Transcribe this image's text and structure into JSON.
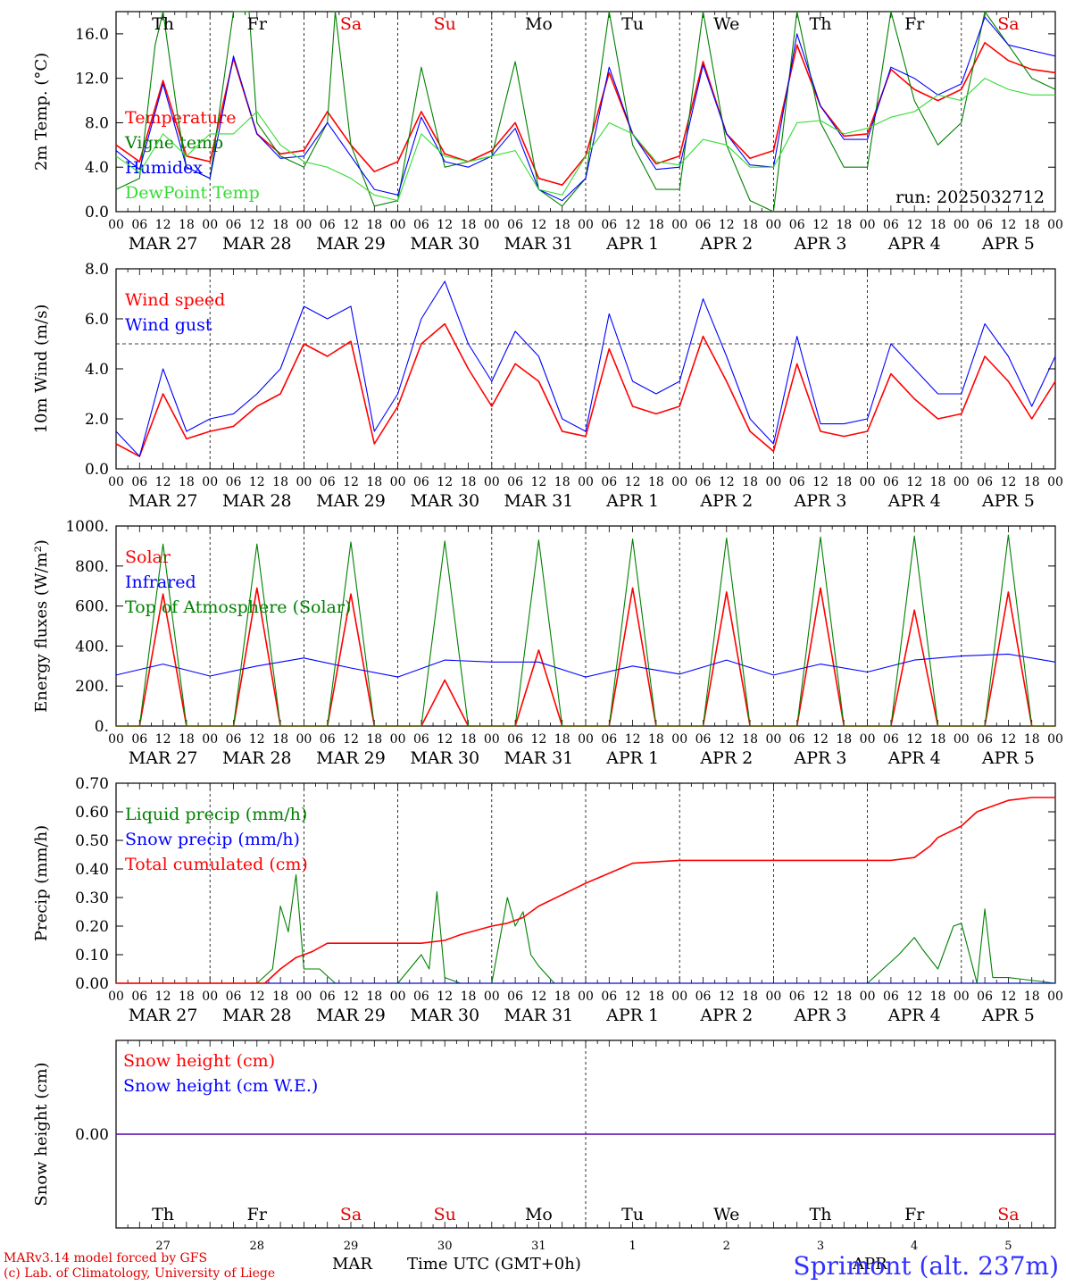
{
  "colors": {
    "red": "#ff0000",
    "green": "#008000",
    "blue": "#0000ff",
    "lightgreen": "#33dd33",
    "weekday": "#000000",
    "weekend": "#e00000",
    "station": "#3030ff",
    "credit": "#e00000"
  },
  "days": [
    {
      "weekday": "Th",
      "date": "MAR 27",
      "num": "27",
      "weekend": false
    },
    {
      "weekday": "Fr",
      "date": "MAR 28",
      "num": "28",
      "weekend": false
    },
    {
      "weekday": "Sa",
      "date": "MAR 29",
      "num": "29",
      "weekend": true
    },
    {
      "weekday": "Su",
      "date": "MAR 30",
      "num": "30",
      "weekend": true
    },
    {
      "weekday": "Mo",
      "date": "MAR 31",
      "num": "31",
      "weekend": false
    },
    {
      "weekday": "Tu",
      "date": "APR 1",
      "num": "1",
      "weekend": false
    },
    {
      "weekday": "We",
      "date": "APR 2",
      "num": "2",
      "weekend": false
    },
    {
      "weekday": "Th",
      "date": "APR 3",
      "num": "3",
      "weekend": false
    },
    {
      "weekday": "Fr",
      "date": "APR 4",
      "num": "4",
      "weekend": false
    },
    {
      "weekday": "Sa",
      "date": "APR 5",
      "num": "5",
      "weekend": true
    }
  ],
  "hour_ticks": [
    "00",
    "06",
    "12",
    "18"
  ],
  "chart_data": [
    {
      "type": "line",
      "ylabel": "2m Temp. (°C)",
      "ylim": [
        0,
        18
      ],
      "yticks": [
        "0.0",
        "4.0",
        "8.0",
        "12.0",
        "16.0"
      ],
      "x_unit": "hours since MAR 27 00 UTC",
      "run_label": "run: 2025032712",
      "series": [
        {
          "name": "Temperature",
          "color": "red",
          "x": [
            0,
            6,
            12,
            18,
            24,
            30,
            36,
            42,
            48,
            54,
            60,
            66,
            72,
            78,
            84,
            90,
            96,
            102,
            108,
            114,
            120,
            126,
            132,
            138,
            144,
            150,
            156,
            162,
            168,
            174,
            180,
            186,
            192,
            198,
            204,
            210,
            216,
            222,
            228,
            234,
            240
          ],
          "values": [
            6,
            4.5,
            11.8,
            5,
            4.5,
            13.8,
            7,
            5.2,
            5.5,
            9,
            6,
            3.6,
            4.5,
            9,
            5.2,
            4.5,
            5.5,
            8,
            3,
            2.4,
            5,
            12.5,
            7,
            4.3,
            5,
            13.5,
            7,
            4.8,
            5.5,
            15,
            9.5,
            6.8,
            7,
            12.8,
            11,
            10,
            11,
            15.2,
            13.6,
            12.8,
            12.5
          ]
        },
        {
          "name": "Vigne temp",
          "color": "green",
          "x": [
            0,
            6,
            10,
            12,
            16,
            18,
            24,
            30,
            34,
            36,
            42,
            48,
            54,
            56,
            60,
            66,
            72,
            78,
            84,
            90,
            96,
            102,
            108,
            114,
            120,
            126,
            132,
            138,
            144,
            150,
            156,
            162,
            168,
            174,
            180,
            186,
            192,
            198,
            204,
            210,
            216,
            222,
            228,
            234,
            240
          ],
          "values": [
            2,
            3,
            15,
            18,
            8,
            4,
            3,
            18,
            18,
            8,
            5,
            4,
            8,
            18,
            6,
            0.5,
            1,
            13,
            4,
            4.5,
            5,
            13.5,
            2,
            0.5,
            3,
            18,
            6,
            2,
            2,
            18,
            6,
            1,
            0,
            18,
            8,
            4,
            4,
            18,
            10,
            6,
            8,
            18,
            15,
            12,
            11
          ]
        },
        {
          "name": "Humidex",
          "color": "blue",
          "x": [
            0,
            6,
            12,
            18,
            24,
            30,
            36,
            42,
            48,
            54,
            60,
            66,
            72,
            78,
            84,
            90,
            96,
            102,
            108,
            114,
            120,
            126,
            132,
            138,
            144,
            150,
            156,
            162,
            168,
            174,
            180,
            186,
            192,
            198,
            204,
            210,
            216,
            222,
            228,
            234,
            240
          ],
          "values": [
            5.5,
            3.8,
            11.5,
            4,
            3,
            14,
            7,
            4.8,
            5,
            8,
            5,
            2,
            1.5,
            8.5,
            4.5,
            4,
            5,
            7.5,
            2,
            1,
            3,
            13,
            7,
            3.8,
            4,
            13.2,
            7,
            4.2,
            4,
            16,
            9.5,
            6.5,
            6.5,
            13,
            12,
            10.5,
            11.5,
            17.5,
            15,
            14.5,
            14
          ]
        },
        {
          "name": "DewPoint Temp",
          "color": "lightgreen",
          "x": [
            0,
            6,
            12,
            18,
            24,
            30,
            36,
            42,
            48,
            54,
            60,
            66,
            72,
            78,
            84,
            90,
            96,
            102,
            108,
            114,
            120,
            126,
            132,
            138,
            144,
            150,
            156,
            162,
            168,
            174,
            180,
            186,
            192,
            198,
            204,
            210,
            216,
            222,
            228,
            234,
            240
          ],
          "values": [
            5,
            3.5,
            7,
            5,
            7,
            7,
            9,
            6,
            4.5,
            4,
            3,
            1.5,
            1,
            7,
            5,
            4.5,
            5,
            5.5,
            2,
            1.5,
            5,
            8,
            7,
            4.5,
            4.2,
            6.5,
            6,
            4,
            4,
            8,
            8.2,
            7,
            7.5,
            8.5,
            9,
            10.5,
            10,
            12,
            11,
            10.5,
            10.5
          ]
        }
      ]
    },
    {
      "type": "line",
      "ylabel": "10m Wind (m/s)",
      "ylim": [
        0,
        8
      ],
      "yticks": [
        "0.0",
        "2.0",
        "4.0",
        "6.0",
        "8.0"
      ],
      "reference_line": 5,
      "series": [
        {
          "name": "Wind speed",
          "color": "red",
          "x": [
            0,
            6,
            12,
            18,
            24,
            30,
            36,
            42,
            48,
            54,
            60,
            66,
            72,
            78,
            84,
            90,
            96,
            102,
            108,
            114,
            120,
            126,
            132,
            138,
            144,
            150,
            156,
            162,
            168,
            174,
            180,
            186,
            192,
            198,
            204,
            210,
            216,
            222,
            228,
            234,
            240
          ],
          "values": [
            1,
            0.5,
            3,
            1.2,
            1.5,
            1.7,
            2.5,
            3,
            5,
            4.5,
            5.1,
            1,
            2.5,
            5,
            5.8,
            4,
            2.5,
            4.2,
            3.5,
            1.5,
            1.3,
            4.8,
            2.5,
            2.2,
            2.5,
            5.3,
            3.5,
            1.5,
            0.7,
            4.2,
            1.5,
            1.3,
            1.5,
            3.8,
            2.8,
            2,
            2.2,
            4.5,
            3.5,
            2,
            3.5
          ]
        },
        {
          "name": "Wind gust",
          "color": "blue",
          "x": [
            0,
            6,
            12,
            18,
            24,
            30,
            36,
            42,
            48,
            54,
            60,
            66,
            72,
            78,
            84,
            90,
            96,
            102,
            108,
            114,
            120,
            126,
            132,
            138,
            144,
            150,
            156,
            162,
            168,
            174,
            180,
            186,
            192,
            198,
            204,
            210,
            216,
            222,
            228,
            234,
            240
          ],
          "values": [
            1.5,
            0.5,
            4,
            1.5,
            2,
            2.2,
            3,
            4,
            6.5,
            6,
            6.5,
            1.5,
            3,
            6,
            7.5,
            5,
            3.5,
            5.5,
            4.5,
            2,
            1.5,
            6.2,
            3.5,
            3,
            3.5,
            6.8,
            4.5,
            2,
            1,
            5.3,
            1.8,
            1.8,
            2,
            5,
            4,
            3,
            3,
            5.8,
            4.5,
            2.5,
            4.5
          ]
        }
      ]
    },
    {
      "type": "line",
      "ylabel": "Energy fluxes (W/m²)",
      "ylim": [
        0,
        1000
      ],
      "yticks": [
        "0.",
        "200.",
        "400.",
        "600.",
        "800.",
        "1000."
      ],
      "series": [
        {
          "name": "Solar",
          "color": "red",
          "x": [
            0,
            6,
            12,
            18,
            24,
            30,
            36,
            42,
            48,
            54,
            60,
            66,
            72,
            78,
            84,
            90,
            96,
            102,
            108,
            114,
            120,
            126,
            132,
            138,
            144,
            150,
            156,
            162,
            168,
            174,
            180,
            186,
            192,
            198,
            204,
            210,
            216,
            222,
            228,
            234,
            240
          ],
          "values": [
            0,
            0,
            660,
            0,
            0,
            0,
            690,
            0,
            0,
            0,
            660,
            0,
            0,
            0,
            230,
            0,
            0,
            0,
            380,
            0,
            0,
            0,
            690,
            0,
            0,
            0,
            670,
            0,
            0,
            0,
            690,
            0,
            0,
            0,
            580,
            0,
            0,
            0,
            670,
            0,
            0
          ]
        },
        {
          "name": "Infrared",
          "color": "blue",
          "x": [
            0,
            12,
            24,
            36,
            48,
            60,
            72,
            84,
            96,
            108,
            120,
            132,
            144,
            156,
            168,
            180,
            192,
            204,
            216,
            228,
            240
          ],
          "values": [
            255,
            310,
            250,
            300,
            340,
            290,
            245,
            330,
            320,
            320,
            245,
            300,
            260,
            330,
            255,
            310,
            270,
            330,
            350,
            360,
            320
          ]
        },
        {
          "name": "Top of Atmosphere (Solar)",
          "color": "green",
          "x": [
            0,
            6,
            12,
            18,
            24,
            30,
            36,
            42,
            48,
            54,
            60,
            66,
            72,
            78,
            84,
            90,
            96,
            102,
            108,
            114,
            120,
            126,
            132,
            138,
            144,
            150,
            156,
            162,
            168,
            174,
            180,
            186,
            192,
            198,
            204,
            210,
            216,
            222,
            228,
            234,
            240
          ],
          "values": [
            0,
            0,
            910,
            0,
            0,
            0,
            910,
            0,
            0,
            0,
            920,
            0,
            0,
            0,
            925,
            0,
            0,
            0,
            930,
            0,
            0,
            0,
            935,
            0,
            0,
            0,
            940,
            0,
            0,
            0,
            945,
            0,
            0,
            0,
            950,
            0,
            0,
            0,
            955,
            0,
            0
          ]
        }
      ]
    },
    {
      "type": "line",
      "ylabel": "Precip (mm/h)",
      "ylim": [
        0,
        0.7
      ],
      "yticks": [
        "0.00",
        "0.10",
        "0.20",
        "0.30",
        "0.40",
        "0.50",
        "0.60",
        "0.70"
      ],
      "series": [
        {
          "name": "Liquid precip (mm/h)",
          "color": "green",
          "x": [
            0,
            36,
            40,
            42,
            44,
            46,
            48,
            52,
            56,
            72,
            78,
            80,
            82,
            84,
            88,
            96,
            98,
            100,
            102,
            104,
            106,
            108,
            110,
            112,
            114,
            120,
            192,
            200,
            204,
            206,
            210,
            214,
            216,
            220,
            222,
            224,
            228,
            240
          ],
          "values": [
            0,
            0,
            0.05,
            0.27,
            0.18,
            0.38,
            0.05,
            0.05,
            0,
            0,
            0.1,
            0.05,
            0.32,
            0.02,
            0,
            0,
            0.15,
            0.3,
            0.2,
            0.25,
            0.1,
            0.06,
            0.03,
            0,
            0,
            0,
            0,
            0.1,
            0.16,
            0.12,
            0.05,
            0.2,
            0.21,
            0,
            0.26,
            0.02,
            0.02,
            0
          ]
        },
        {
          "name": "Snow precip (mm/h)",
          "color": "blue",
          "x": [
            0,
            240
          ],
          "values": [
            0,
            0
          ]
        },
        {
          "name": "Total cumulated (cm)",
          "color": "red",
          "x": [
            0,
            38,
            42,
            46,
            50,
            54,
            60,
            72,
            78,
            84,
            88,
            96,
            100,
            104,
            108,
            120,
            132,
            144,
            156,
            168,
            180,
            192,
            198,
            204,
            208,
            210,
            216,
            220,
            222,
            228,
            234,
            240
          ],
          "values": [
            0,
            0,
            0.05,
            0.09,
            0.11,
            0.14,
            0.14,
            0.14,
            0.14,
            0.15,
            0.17,
            0.2,
            0.21,
            0.23,
            0.27,
            0.35,
            0.42,
            0.43,
            0.43,
            0.43,
            0.43,
            0.43,
            0.43,
            0.44,
            0.48,
            0.51,
            0.55,
            0.6,
            0.61,
            0.64,
            0.65,
            0.65
          ]
        }
      ]
    },
    {
      "type": "line",
      "ylabel": "Snow height (cm)",
      "ylim": [
        -1,
        1
      ],
      "yticks": [
        "0.00"
      ],
      "series": [
        {
          "name": "Snow height (cm)",
          "color": "red",
          "x": [
            0,
            240
          ],
          "values": [
            0,
            0
          ]
        },
        {
          "name": "Snow height (cm W.E.)",
          "color": "blue",
          "x": [
            0,
            240
          ],
          "values": [
            0,
            0
          ]
        }
      ]
    }
  ],
  "footer": {
    "model_credit": "MARv3.14 model forced by GFS",
    "lab_credit": "(c) Lab. of Climatology, University of Liege",
    "month_mar": "MAR",
    "month_apr": "APR",
    "time_axis": "Time UTC (GMT+0h)",
    "station": "Sprimont (alt. 237m)"
  }
}
